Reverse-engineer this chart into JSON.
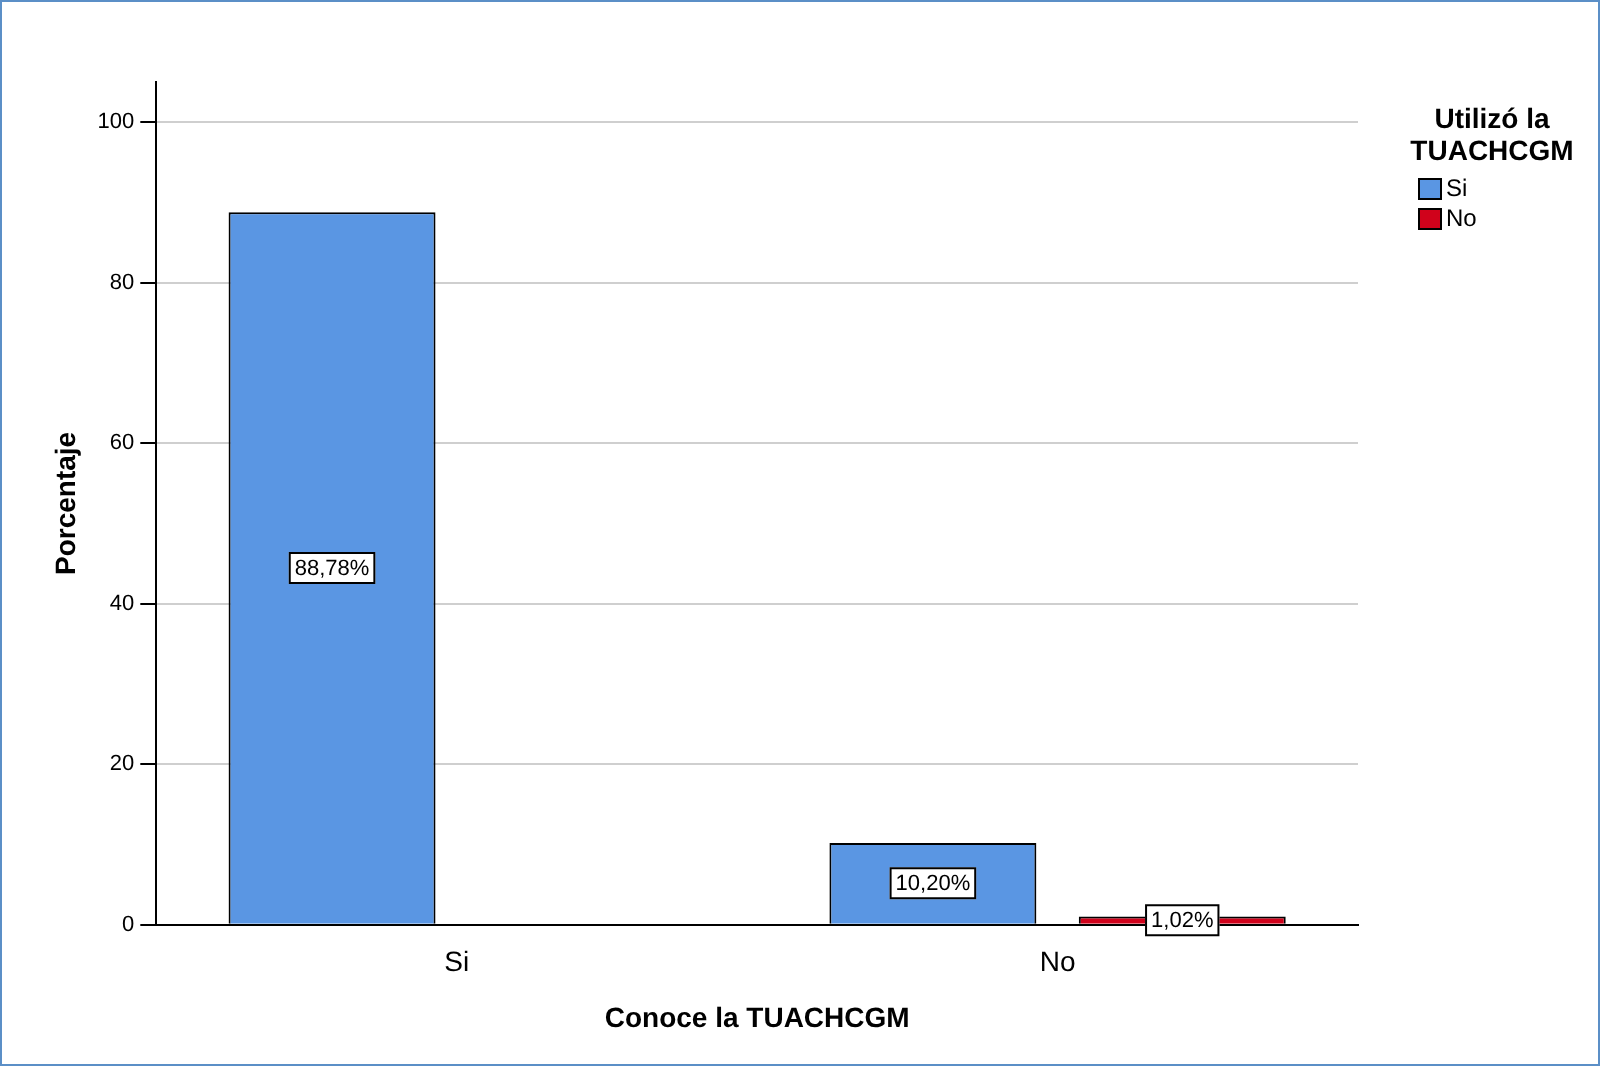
{
  "chart_data": {
    "type": "bar",
    "xlabel": "Conoce la TUACHCGM",
    "ylabel": "Porcentaje",
    "legend_title": "Utilizó la TUACHCGM",
    "categories": [
      "Si",
      "No"
    ],
    "series": [
      {
        "name": "Si",
        "color": "#5a96e3",
        "values": [
          88.78,
          10.2
        ],
        "value_labels": [
          "88,78%",
          "10,20%"
        ]
      },
      {
        "name": "No",
        "color": "#d0021b",
        "values": [
          null,
          1.02
        ],
        "value_labels": [
          null,
          "1,02%"
        ]
      }
    ],
    "ylim": [
      0,
      105
    ],
    "yticks": [
      0,
      20,
      40,
      60,
      80,
      100
    ],
    "grid": "y",
    "legend": "top right"
  }
}
